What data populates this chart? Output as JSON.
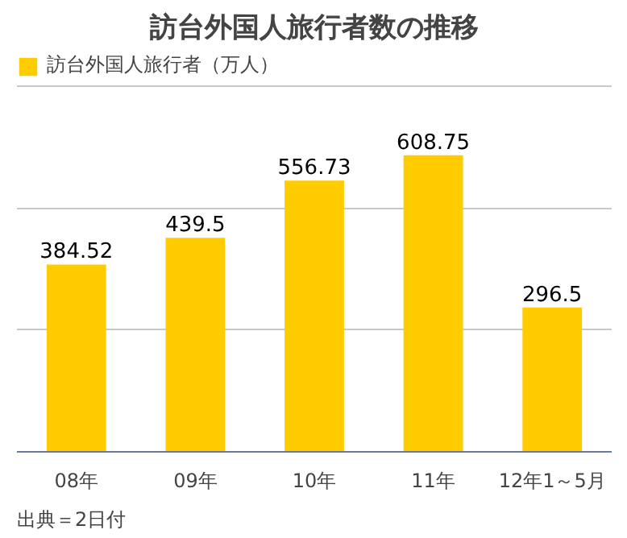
{
  "chart_data": {
    "type": "bar",
    "title": "訪台外国人旅行者数の推移",
    "categories": [
      "08年",
      "09年",
      "10年",
      "11年",
      "12年1～5月"
    ],
    "series": [
      {
        "name": "訪台外国人旅行者（万人）",
        "color": "#ffcc00",
        "values": [
          384.52,
          439.5,
          556.73,
          608.75,
          296.5
        ]
      }
    ],
    "ylim": [
      0,
      820
    ],
    "yticks": [
      {
        "value": 0,
        "label": null
      },
      {
        "value": 250,
        "label": null
      },
      {
        "value": 500,
        "label": null
      },
      {
        "value": 750,
        "label": null
      }
    ],
    "tick_labels": "x",
    "grid": "y",
    "legend": "top left",
    "data_labels": true,
    "annotations": [
      "出典＝2日付"
    ]
  }
}
